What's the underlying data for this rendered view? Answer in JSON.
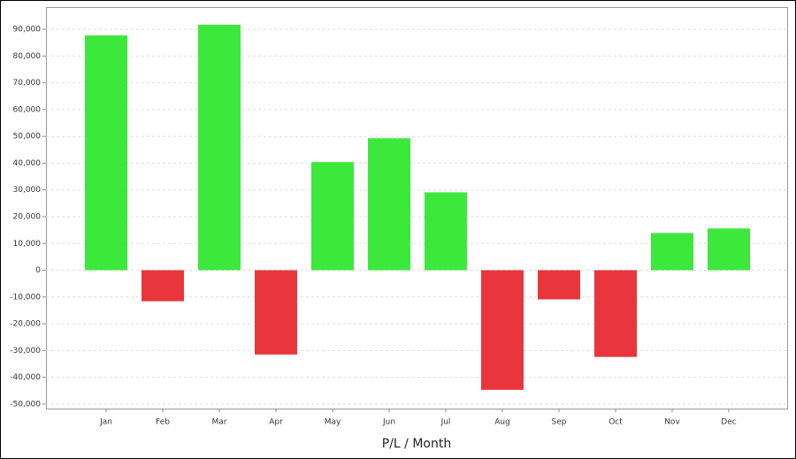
{
  "chart_data": {
    "type": "bar",
    "x_label": "P/L / Month",
    "categories": [
      "Jan",
      "Feb",
      "Mar",
      "Apr",
      "May",
      "Jun",
      "Jul",
      "Aug",
      "Sep",
      "Oct",
      "Nov",
      "Dec"
    ],
    "values": [
      87700,
      -11600,
      91700,
      -31500,
      40400,
      49300,
      29100,
      -44700,
      -10900,
      -32400,
      13900,
      15600
    ],
    "color": "#3de83d",
    "negative_color": "#e8363c",
    "ylim": [
      -51700,
      98300
    ],
    "yticks": [
      {
        "value": -50000,
        "label": "-50,000"
      },
      {
        "value": -40000,
        "label": "-40,000"
      },
      {
        "value": -30000,
        "label": "-30,000"
      },
      {
        "value": -20000,
        "label": "-20,000"
      },
      {
        "value": -10000,
        "label": "-10,000"
      },
      0,
      {
        "value": 10000,
        "label": "10,000"
      },
      {
        "value": 20000,
        "label": "20,000"
      },
      {
        "value": 30000,
        "label": "30,000"
      },
      {
        "value": 40000,
        "label": "40,000"
      },
      {
        "value": 50000,
        "label": "50,000"
      },
      {
        "value": 60000,
        "label": "60,000"
      },
      {
        "value": 70000,
        "label": "70,000"
      },
      {
        "value": 80000,
        "label": "80,000"
      },
      {
        "value": 90000,
        "label": "90,000"
      }
    ],
    "grid": true
  }
}
